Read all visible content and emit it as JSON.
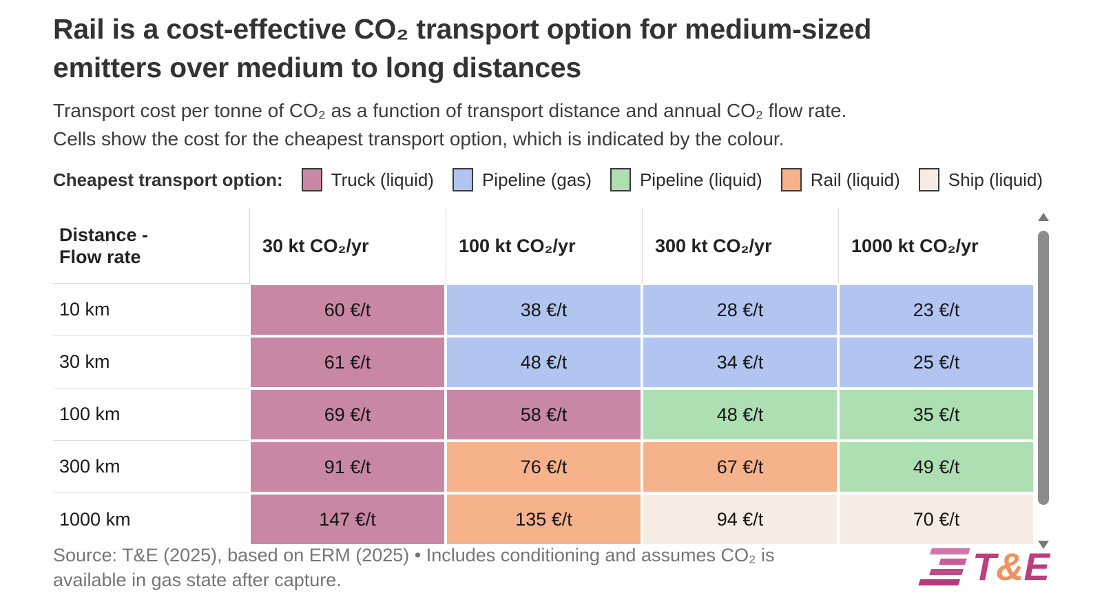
{
  "title": {
    "line1": "Rail is a cost-effective CO₂ transport option for medium-sized",
    "line2": "emitters over medium to long distances"
  },
  "subtitle": {
    "line1": "Transport cost per tonne of CO₂ as a function of transport distance and annual CO₂ flow rate.",
    "line2": "Cells show the cost for the cheapest transport option, which is indicated by the colour."
  },
  "legend": {
    "label": "Cheapest transport option:",
    "items": [
      {
        "label": "Truck (liquid)",
        "color": "#c987a6"
      },
      {
        "label": "Pipeline (gas)",
        "color": "#b1c5f0"
      },
      {
        "label": "Pipeline (liquid)",
        "color": "#aedfb3"
      },
      {
        "label": "Rail (liquid)",
        "color": "#f6b28b"
      },
      {
        "label": "Ship (liquid)",
        "color": "#f6ece3"
      }
    ]
  },
  "table": {
    "corner_header": "Distance - Flow rate",
    "col_headers": [
      "30 kt CO₂/yr",
      "100 kt CO₂/yr",
      "300 kt CO₂/yr",
      "1000 kt CO₂/yr"
    ],
    "rows": [
      {
        "label": "10 km",
        "cells": [
          {
            "value": "60 €/t",
            "option": "Truck (liquid)",
            "bg": "#c987a6"
          },
          {
            "value": "38 €/t",
            "option": "Pipeline (gas)",
            "bg": "#b1c5f0"
          },
          {
            "value": "28 €/t",
            "option": "Pipeline (gas)",
            "bg": "#b1c5f0"
          },
          {
            "value": "23 €/t",
            "option": "Pipeline (gas)",
            "bg": "#b1c5f0"
          }
        ]
      },
      {
        "label": "30 km",
        "cells": [
          {
            "value": "61 €/t",
            "option": "Truck (liquid)",
            "bg": "#c987a6"
          },
          {
            "value": "48 €/t",
            "option": "Pipeline (gas)",
            "bg": "#b1c5f0"
          },
          {
            "value": "34 €/t",
            "option": "Pipeline (gas)",
            "bg": "#b1c5f0"
          },
          {
            "value": "25 €/t",
            "option": "Pipeline (gas)",
            "bg": "#b1c5f0"
          }
        ]
      },
      {
        "label": "100 km",
        "cells": [
          {
            "value": "69 €/t",
            "option": "Truck (liquid)",
            "bg": "#c987a6"
          },
          {
            "value": "58 €/t",
            "option": "Truck (liquid)",
            "bg": "#c987a6"
          },
          {
            "value": "48 €/t",
            "option": "Pipeline (liquid)",
            "bg": "#aedfb3"
          },
          {
            "value": "35 €/t",
            "option": "Pipeline (liquid)",
            "bg": "#aedfb3"
          }
        ]
      },
      {
        "label": "300 km",
        "cells": [
          {
            "value": "91 €/t",
            "option": "Truck (liquid)",
            "bg": "#c987a6"
          },
          {
            "value": "76 €/t",
            "option": "Rail (liquid)",
            "bg": "#f6b28b"
          },
          {
            "value": "67 €/t",
            "option": "Rail (liquid)",
            "bg": "#f6b28b"
          },
          {
            "value": "49 €/t",
            "option": "Pipeline (liquid)",
            "bg": "#aedfb3"
          }
        ]
      },
      {
        "label": "1000 km",
        "cells": [
          {
            "value": "147 €/t",
            "option": "Truck (liquid)",
            "bg": "#c987a6"
          },
          {
            "value": "135 €/t",
            "option": "Rail (liquid)",
            "bg": "#f6b28b"
          },
          {
            "value": "94 €/t",
            "option": "Ship (liquid)",
            "bg": "#f6ece3"
          },
          {
            "value": "70 €/t",
            "option": "Ship (liquid)",
            "bg": "#f6ece3"
          }
        ]
      }
    ]
  },
  "chart_data": {
    "type": "heatmap",
    "title": "Rail is a cost-effective CO₂ transport option for medium-sized emitters over medium to long distances",
    "subtitle": "Transport cost per tonne of CO₂ as a function of transport distance and annual CO₂ flow rate. Cells show the cost for the cheapest transport option, which is indicated by the colour.",
    "unit": "€/t",
    "x_label": "Annual CO₂ flow rate",
    "y_label": "Transport distance",
    "x_categories": [
      "30 kt CO₂/yr",
      "100 kt CO₂/yr",
      "300 kt CO₂/yr",
      "1000 kt CO₂/yr"
    ],
    "y_categories": [
      "10 km",
      "30 km",
      "100 km",
      "300 km",
      "1000 km"
    ],
    "values_eur_per_tonne": [
      [
        60,
        38,
        28,
        23
      ],
      [
        61,
        48,
        34,
        25
      ],
      [
        69,
        58,
        48,
        35
      ],
      [
        91,
        76,
        67,
        49
      ],
      [
        147,
        135,
        94,
        70
      ]
    ],
    "cheapest_option": [
      [
        "Truck (liquid)",
        "Pipeline (gas)",
        "Pipeline (gas)",
        "Pipeline (gas)"
      ],
      [
        "Truck (liquid)",
        "Pipeline (gas)",
        "Pipeline (gas)",
        "Pipeline (gas)"
      ],
      [
        "Truck (liquid)",
        "Truck (liquid)",
        "Pipeline (liquid)",
        "Pipeline (liquid)"
      ],
      [
        "Truck (liquid)",
        "Rail (liquid)",
        "Rail (liquid)",
        "Pipeline (liquid)"
      ],
      [
        "Truck (liquid)",
        "Rail (liquid)",
        "Ship (liquid)",
        "Ship (liquid)"
      ]
    ],
    "legend_position": "top",
    "option_colors": {
      "Truck (liquid)": "#c987a6",
      "Pipeline (gas)": "#b1c5f0",
      "Pipeline (liquid)": "#aedfb3",
      "Rail (liquid)": "#f6b28b",
      "Ship (liquid)": "#f6ece3"
    }
  },
  "source": {
    "line1": "Source: T&E (2025), based on ERM (2025) • Includes conditioning and assumes CO₂ is",
    "line2": "available in gas state after capture."
  },
  "logo": {
    "letter_t": "T",
    "letter_amp": "&",
    "letter_e": "E",
    "magenta": "#bc3e7e",
    "orange": "#ef9260",
    "stripe_colors": [
      "#d077ab",
      "#c75f9a",
      "#bd4a89",
      "#b43a7b"
    ]
  }
}
